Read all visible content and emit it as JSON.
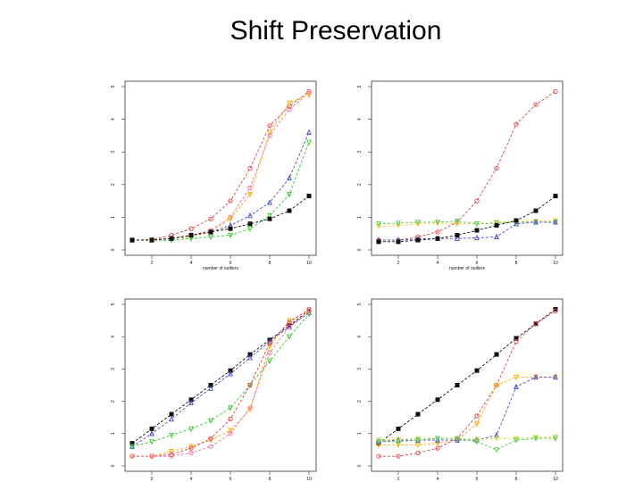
{
  "title": "Shift Preservation",
  "chart_data": [
    {
      "type": "line",
      "xlabel": "number of outliers",
      "ylabel": "",
      "xlim": [
        1,
        10
      ],
      "ylim": [
        0,
        5
      ],
      "xticks": [
        "2",
        "4",
        "6",
        "8",
        "10"
      ],
      "yticks": [
        "0",
        "1",
        "2",
        "3",
        "4",
        "5"
      ],
      "x": [
        1,
        2,
        3,
        4,
        5,
        6,
        7,
        8,
        9,
        10
      ],
      "series": [
        {
          "color": "#e04545",
          "marker": "circle",
          "values": [
            0.3,
            0.32,
            0.45,
            0.65,
            0.95,
            1.5,
            2.5,
            3.8,
            4.4,
            4.85
          ]
        },
        {
          "color": "#ff6b9a",
          "marker": "circle",
          "values": [
            0.3,
            0.3,
            0.35,
            0.45,
            0.6,
            1.0,
            1.9,
            3.5,
            4.3,
            4.8
          ]
        },
        {
          "color": "#ffaa00",
          "marker": "triangle-down",
          "values": [
            0.3,
            0.3,
            0.35,
            0.4,
            0.55,
            0.95,
            1.7,
            3.6,
            4.5,
            4.75
          ]
        },
        {
          "color": "#4a4ad8",
          "marker": "triangle",
          "values": [
            0.3,
            0.3,
            0.35,
            0.45,
            0.55,
            0.75,
            1.05,
            1.45,
            2.2,
            3.6
          ]
        },
        {
          "color": "#33cc33",
          "marker": "triangle-down",
          "values": [
            0.3,
            0.3,
            0.3,
            0.35,
            0.4,
            0.45,
            0.65,
            1.05,
            1.7,
            3.3
          ]
        },
        {
          "color": "#111111",
          "marker": "square",
          "values": [
            0.3,
            0.3,
            0.35,
            0.45,
            0.55,
            0.65,
            0.8,
            0.95,
            1.2,
            1.65
          ]
        }
      ]
    },
    {
      "type": "line",
      "xlabel": "number of outliers",
      "ylabel": "",
      "xlim": [
        1,
        10
      ],
      "ylim": [
        0,
        5
      ],
      "xticks": [
        "2",
        "4",
        "6",
        "8",
        "10"
      ],
      "yticks": [
        "0",
        "1",
        "2",
        "3",
        "4",
        "5"
      ],
      "x": [
        1,
        2,
        3,
        4,
        5,
        6,
        7,
        8,
        9,
        10
      ],
      "series": [
        {
          "color": "#e04545",
          "marker": "circle",
          "values": [
            0.3,
            0.3,
            0.4,
            0.55,
            0.85,
            1.5,
            2.5,
            3.85,
            4.45,
            4.85
          ]
        },
        {
          "color": "#ffcc33",
          "marker": "triangle-down",
          "values": [
            0.72,
            0.75,
            0.8,
            0.82,
            0.8,
            0.8,
            0.85,
            0.88,
            0.88,
            0.9
          ]
        },
        {
          "color": "#55cc55",
          "marker": "triangle-down",
          "values": [
            0.8,
            0.82,
            0.85,
            0.85,
            0.88,
            0.8,
            0.82,
            0.85,
            0.85,
            0.85
          ]
        },
        {
          "color": "#4a4ad8",
          "marker": "triangle",
          "values": [
            0.3,
            0.3,
            0.33,
            0.35,
            0.35,
            0.37,
            0.4,
            0.8,
            0.85,
            0.85
          ]
        },
        {
          "color": "#111111",
          "marker": "square",
          "values": [
            0.25,
            0.25,
            0.3,
            0.35,
            0.45,
            0.6,
            0.75,
            0.9,
            1.2,
            1.65
          ]
        }
      ]
    },
    {
      "type": "line",
      "xlabel": "",
      "ylabel": "",
      "xlim": [
        1,
        10
      ],
      "ylim": [
        0,
        5
      ],
      "xticks": [
        "2",
        "4",
        "6",
        "8",
        "10"
      ],
      "yticks": [
        "0",
        "1",
        "2",
        "3",
        "4",
        "5"
      ],
      "x": [
        1,
        2,
        3,
        4,
        5,
        6,
        7,
        8,
        9,
        10
      ],
      "series": [
        {
          "color": "#111111",
          "marker": "square",
          "values": [
            0.7,
            1.15,
            1.6,
            2.05,
            2.5,
            2.95,
            3.45,
            3.9,
            4.35,
            4.8
          ]
        },
        {
          "color": "#4a4ad8",
          "marker": "triangle",
          "values": [
            0.6,
            1.0,
            1.45,
            1.95,
            2.4,
            2.85,
            3.35,
            3.85,
            4.3,
            4.75
          ]
        },
        {
          "color": "#33cc33",
          "marker": "triangle-down",
          "values": [
            0.6,
            0.75,
            0.95,
            1.15,
            1.4,
            1.8,
            2.5,
            3.25,
            4.0,
            4.7
          ]
        },
        {
          "color": "#ffaa00",
          "marker": "triangle-down",
          "values": [
            0.3,
            0.3,
            0.45,
            0.6,
            0.8,
            1.1,
            1.75,
            3.7,
            4.5,
            4.8
          ]
        },
        {
          "color": "#e04545",
          "marker": "circle",
          "values": [
            0.3,
            0.3,
            0.35,
            0.55,
            0.85,
            1.45,
            2.5,
            3.8,
            4.45,
            4.85
          ]
        },
        {
          "color": "#ff6b9a",
          "marker": "circle",
          "values": [
            0.3,
            0.3,
            0.3,
            0.4,
            0.6,
            1.0,
            1.8,
            3.5,
            4.3,
            4.8
          ]
        }
      ]
    },
    {
      "type": "line",
      "xlabel": "",
      "ylabel": "",
      "xlim": [
        1,
        10
      ],
      "ylim": [
        0,
        5
      ],
      "xticks": [
        "2",
        "4",
        "6",
        "8",
        "10"
      ],
      "yticks": [
        "0",
        "1",
        "2",
        "3",
        "4",
        "5"
      ],
      "x": [
        1,
        2,
        3,
        4,
        5,
        6,
        7,
        8,
        9,
        10
      ],
      "series": [
        {
          "color": "#111111",
          "marker": "square",
          "values": [
            0.7,
            1.15,
            1.6,
            2.05,
            2.5,
            2.95,
            3.45,
            3.95,
            4.4,
            4.85
          ]
        },
        {
          "color": "#e04545",
          "marker": "circle",
          "values": [
            0.3,
            0.3,
            0.4,
            0.55,
            0.85,
            1.55,
            2.5,
            3.85,
            4.4,
            4.8
          ]
        },
        {
          "color": "#ffaa00",
          "marker": "triangle-down",
          "values": [
            0.65,
            0.65,
            0.65,
            0.7,
            0.8,
            1.3,
            2.5,
            2.75,
            2.75,
            2.75
          ]
        },
        {
          "color": "#4a4ad8",
          "marker": "triangle",
          "values": [
            0.75,
            0.8,
            0.8,
            0.8,
            0.8,
            0.8,
            0.95,
            2.45,
            2.75,
            2.75
          ]
        },
        {
          "color": "#ccdd33",
          "marker": "triangle-down",
          "values": [
            0.8,
            0.82,
            0.85,
            0.85,
            0.85,
            0.82,
            0.85,
            0.85,
            0.88,
            0.9
          ]
        },
        {
          "color": "#55cc55",
          "marker": "triangle-down",
          "values": [
            0.75,
            0.75,
            0.8,
            0.85,
            0.85,
            0.75,
            0.5,
            0.8,
            0.85,
            0.85
          ]
        }
      ]
    }
  ]
}
